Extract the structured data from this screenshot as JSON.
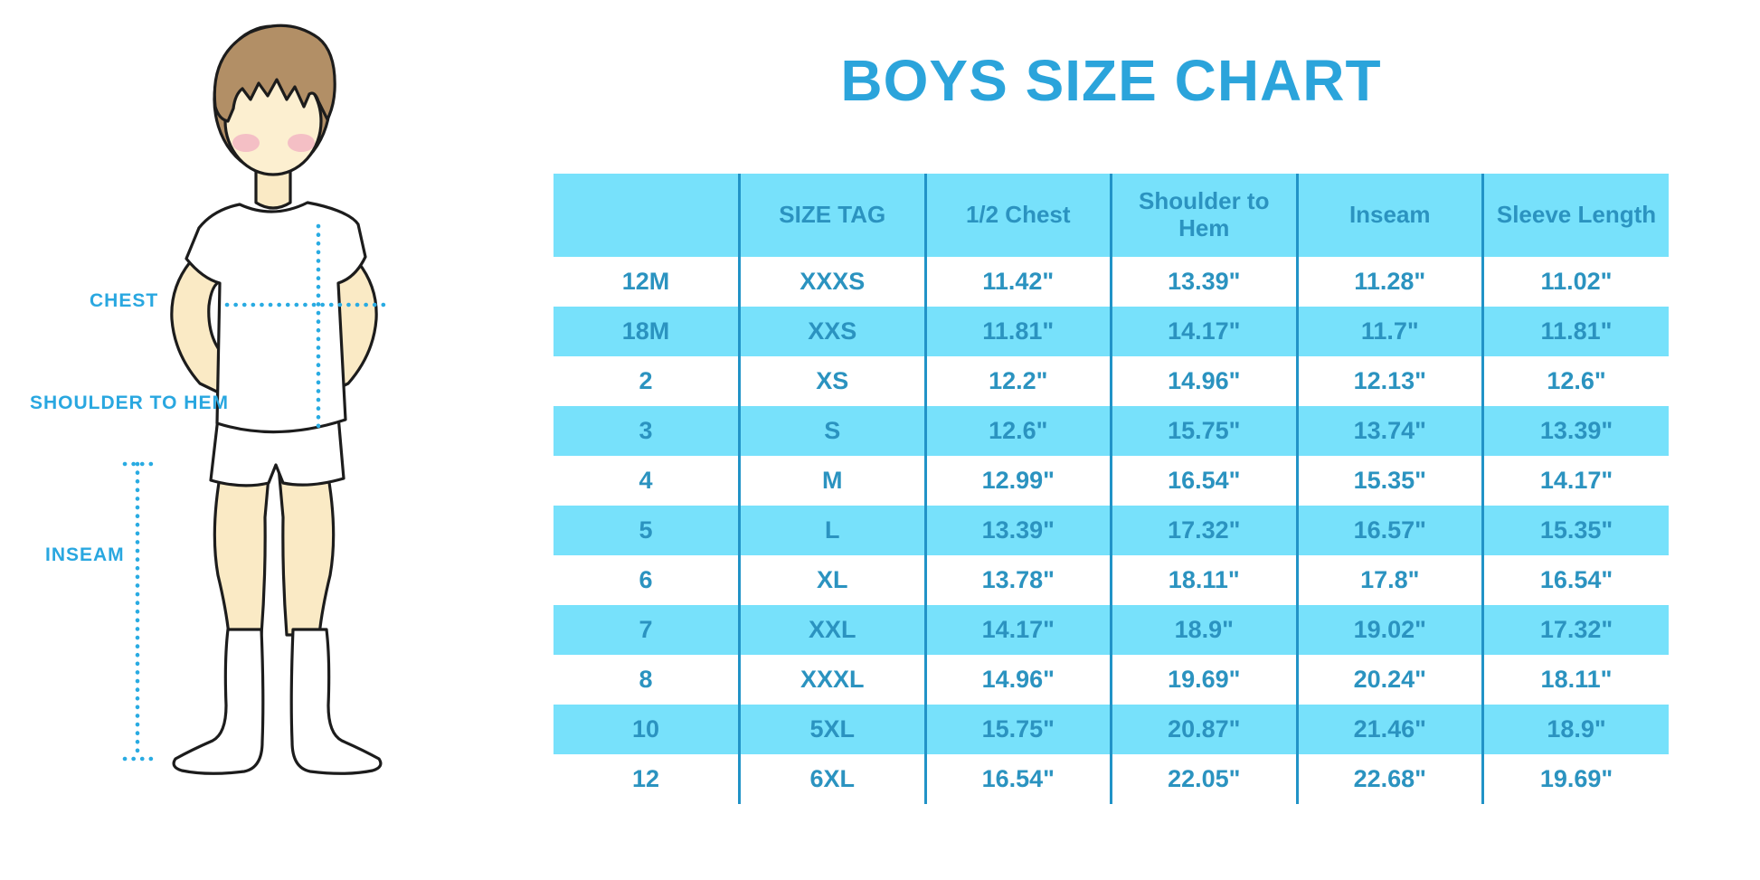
{
  "title": "BOYS SIZE CHART",
  "illustration": {
    "description": "cartoon boy in white t-shirt, shorts and knee socks with measurement guide lines",
    "labels": {
      "chest": "CHEST",
      "shoulder_to_hem": "SHOULDER TO HEM",
      "inseam": "INSEAM"
    }
  },
  "table": {
    "column_keys": [
      "size",
      "size_tag",
      "half_chest",
      "shoulder_to_hem",
      "inseam",
      "sleeve_length"
    ],
    "headers": [
      "",
      "SIZE TAG",
      "1/2 Chest",
      "Shoulder to Hem",
      "Inseam",
      "Sleeve Length"
    ],
    "rows": [
      [
        "12M",
        "XXXS",
        "11.42\"",
        "13.39\"",
        "11.28\"",
        "11.02\""
      ],
      [
        "18M",
        "XXS",
        "11.81\"",
        "14.17\"",
        "11.7\"",
        "11.81\""
      ],
      [
        "2",
        "XS",
        "12.2\"",
        "14.96\"",
        "12.13\"",
        "12.6\""
      ],
      [
        "3",
        "S",
        "12.6\"",
        "15.75\"",
        "13.74\"",
        "13.39\""
      ],
      [
        "4",
        "M",
        "12.99\"",
        "16.54\"",
        "15.35\"",
        "14.17\""
      ],
      [
        "5",
        "L",
        "13.39\"",
        "17.32\"",
        "16.57\"",
        "15.35\""
      ],
      [
        "6",
        "XL",
        "13.78\"",
        "18.11\"",
        "17.8\"",
        "16.54\""
      ],
      [
        "7",
        "XXL",
        "14.17\"",
        "18.9\"",
        "19.02\"",
        "17.32\""
      ],
      [
        "8",
        "XXXL",
        "14.96\"",
        "19.69\"",
        "20.24\"",
        "18.11\""
      ],
      [
        "10",
        "5XL",
        "15.75\"",
        "20.87\"",
        "21.46\"",
        "18.9\""
      ],
      [
        "12",
        "6XL",
        "16.54\"",
        "22.05\"",
        "22.68\"",
        "19.69\""
      ]
    ]
  },
  "colors": {
    "accent_blue": "#2ba4db",
    "row_blue": "#77e1fb",
    "divider_blue": "#2193c7",
    "table_text_blue": "#2b93c0",
    "dotted_line_blue": "#29abe2",
    "skin": "#faeac5",
    "hair": "#b28f66",
    "blush": "#f2b6c3",
    "outline": "#1c1c1c"
  }
}
